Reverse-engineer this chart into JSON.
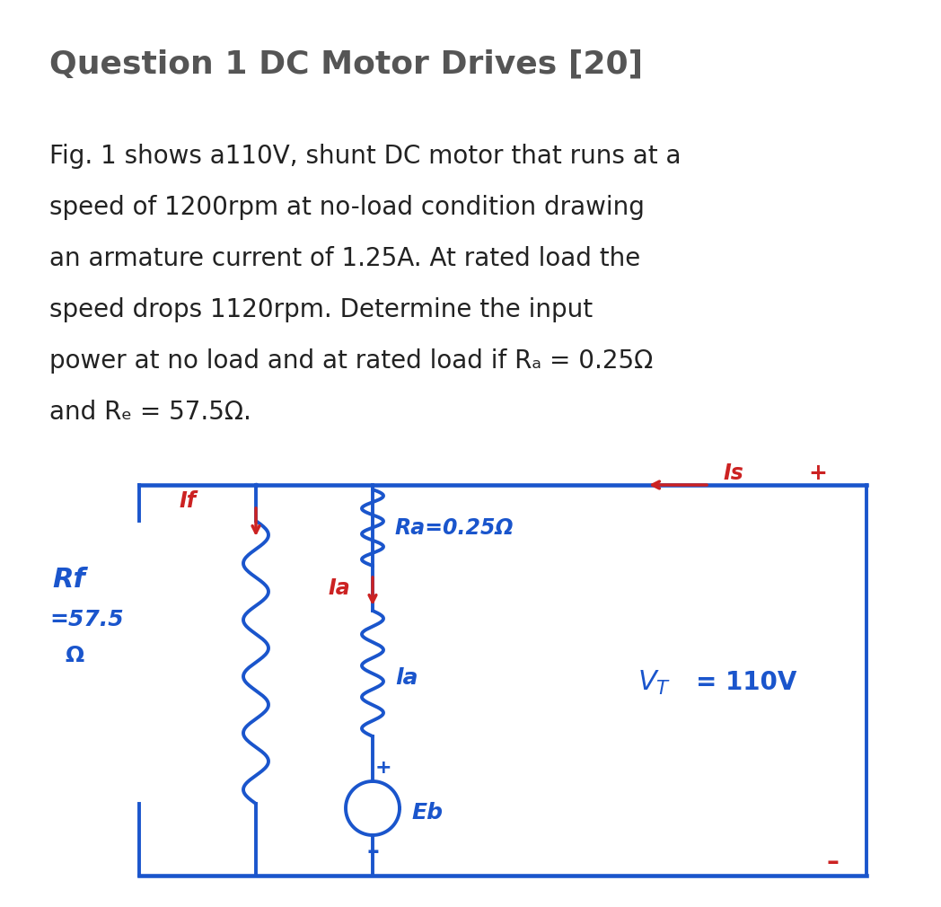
{
  "title": "Question 1 DC Motor Drives [20]",
  "title_color": "#555555",
  "title_fontsize": 26,
  "body_lines": [
    "Fig. 1 shows a110V, shunt DC motor that runs at a",
    "speed of 1200rpm at no-load condition drawing",
    "an armature current of 1.25A. At rated load the",
    "speed drops 1120rpm. Determine the input",
    "power at no load and at rated load if R_a = 0.25Ω",
    "and R_f = 57.5Ω."
  ],
  "body_color": "#222222",
  "body_fontsize": 20,
  "background_color": "#ffffff",
  "blue": "#1a55cc",
  "red": "#cc2222",
  "lw_circuit": 2.8
}
